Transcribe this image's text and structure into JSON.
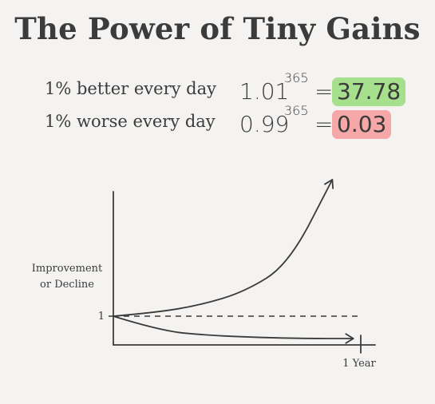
{
  "title": "The Power of Tiny Gains",
  "equations": [
    {
      "label": "1% better every day",
      "base": "1.01",
      "exponent": "365",
      "equals": "=",
      "result": "37.78",
      "result_color": "#a6e08d"
    },
    {
      "label": "1% worse every day",
      "base": "0.99",
      "exponent": "365",
      "equals": "=",
      "result": "0.03",
      "result_color": "#f5a8a7"
    }
  ],
  "chart_data": {
    "type": "line",
    "title": "",
    "xlabel": "",
    "ylabel": "Improvement or Decline",
    "ylabel_lines": [
      "Improvement",
      "or Decline"
    ],
    "x_tick_label": "1 Year",
    "y_tick_label": "1",
    "baseline": 1,
    "series": [
      {
        "style": "solid",
        "x": [
          0,
          0.2,
          0.4,
          0.6,
          0.8,
          1.0
        ],
        "y": [
          1,
          1.04,
          1.12,
          1.26,
          1.55,
          2.45
        ]
      },
      {
        "style": "dashed",
        "x": [
          0,
          1.0
        ],
        "y": [
          1,
          1
        ]
      },
      {
        "style": "solid",
        "x": [
          0,
          0.2,
          0.4,
          0.6,
          0.8,
          1.0
        ],
        "y": [
          1,
          0.86,
          0.82,
          0.8,
          0.79,
          0.79
        ]
      }
    ],
    "grid": false
  }
}
